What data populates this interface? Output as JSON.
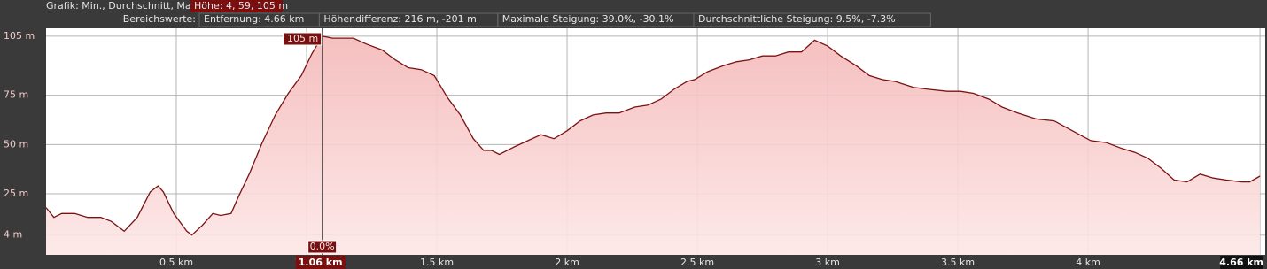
{
  "header": {
    "chart_label": "Grafik: Min., Durchschnitt, Max.",
    "chart_value": "Höhe: 4, 59, 105 m",
    "range_label": "Bereichswerte:",
    "range_values": [
      "Entfernung: 4.66 km",
      "Höhendifferenz: 216 m, -201 m",
      "Maximale Steigung: 39.0%, -30.1%",
      "Durchschnittliche Steigung: 9.5%, -7.3%"
    ]
  },
  "chart_data": {
    "type": "area",
    "color": "#7a1212",
    "fill": "#f6c4c4",
    "grid": true,
    "xlim": [
      0,
      4.68
    ],
    "ylim": [
      -6,
      109
    ],
    "xticks": [
      {
        "value": 0.5,
        "label": "0.5 km"
      },
      {
        "value": 1,
        "label": "1 km"
      },
      {
        "value": 1.5,
        "label": "1.5 km"
      },
      {
        "value": 2,
        "label": "2 km"
      },
      {
        "value": 2.5,
        "label": "2.5 km"
      },
      {
        "value": 3,
        "label": "3 km"
      },
      {
        "value": 3.5,
        "label": "3.5 km"
      },
      {
        "value": 4,
        "label": "4 km"
      },
      {
        "value": 4.66,
        "label": "4.66 km"
      }
    ],
    "yticks": [
      {
        "value": 105,
        "label": "105 m"
      },
      {
        "value": 75,
        "label": "75 m"
      },
      {
        "value": 50,
        "label": "50 m"
      },
      {
        "value": 25,
        "label": "25 m"
      },
      {
        "value": 4,
        "label": "4 m"
      }
    ],
    "x": [
      0,
      0.03,
      0.06,
      0.11,
      0.16,
      0.21,
      0.25,
      0.3,
      0.35,
      0.4,
      0.43,
      0.45,
      0.49,
      0.54,
      0.56,
      0.6,
      0.64,
      0.67,
      0.71,
      0.74,
      0.78,
      0.83,
      0.88,
      0.93,
      0.98,
      1.02,
      1.06,
      1.1,
      1.13,
      1.18,
      1.23,
      1.29,
      1.34,
      1.39,
      1.44,
      1.49,
      1.54,
      1.59,
      1.64,
      1.68,
      1.71,
      1.74,
      1.8,
      1.85,
      1.9,
      1.95,
      2.0,
      2.05,
      2.1,
      2.15,
      2.2,
      2.26,
      2.31,
      2.36,
      2.41,
      2.46,
      2.49,
      2.54,
      2.6,
      2.65,
      2.7,
      2.75,
      2.8,
      2.85,
      2.9,
      2.95,
      3.0,
      3.05,
      3.11,
      3.16,
      3.21,
      3.26,
      3.33,
      3.39,
      3.46,
      3.51,
      3.56,
      3.62,
      3.67,
      3.73,
      3.8,
      3.87,
      3.94,
      4.01,
      4.07,
      4.13,
      4.18,
      4.23,
      4.28,
      4.33,
      4.38,
      4.43,
      4.48,
      4.53,
      4.59,
      4.62,
      4.66
    ],
    "values": [
      18,
      13,
      15,
      15,
      13,
      13,
      11,
      6,
      13,
      26,
      29,
      26,
      15,
      6,
      4,
      9,
      15,
      14,
      15,
      24,
      35,
      51,
      65,
      76,
      85,
      96,
      105,
      104,
      104,
      104,
      101,
      98,
      93,
      89,
      88,
      85,
      74,
      65,
      53,
      47,
      47,
      45,
      49,
      52,
      55,
      53,
      57,
      62,
      65,
      66,
      66,
      69,
      70,
      73,
      78,
      82,
      83,
      87,
      90,
      92,
      93,
      95,
      95,
      97,
      97,
      103,
      100,
      95,
      90,
      85,
      83,
      82,
      79,
      78,
      77,
      77,
      76,
      73,
      69,
      66,
      63,
      62,
      57,
      52,
      51,
      48,
      46,
      43,
      38,
      32,
      31,
      35,
      33,
      32,
      31,
      31,
      34
    ],
    "cursor": {
      "x": 1.06,
      "value": 105,
      "value_label": "105 m",
      "slope_label": "0.0%",
      "x_label": "1.06 km"
    }
  }
}
